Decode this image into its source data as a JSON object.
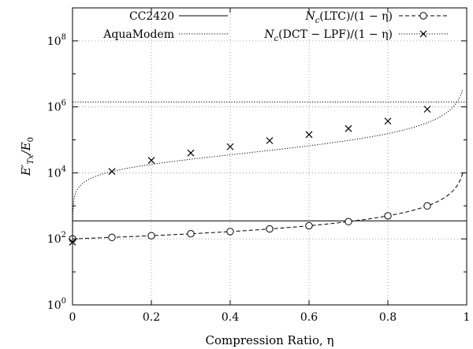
{
  "chart_data": {
    "type": "line",
    "xlabel": "Compression Ratio, η",
    "ylabel": "E′Tx/E0",
    "ylabel_parts": {
      "main": "E′",
      "sub1": "Tx",
      "slash": "/E",
      "sub2": "0"
    },
    "xlim": [
      0,
      1
    ],
    "ylim_log10": [
      0,
      9
    ],
    "y_scale": "log",
    "grid": true,
    "legend_position": "top",
    "x_ticks": [
      "0",
      "0.2",
      "0.4",
      "0.6",
      "0.8",
      "1"
    ],
    "y_ticks": [
      {
        "base": "10",
        "exp": "0"
      },
      {
        "base": "10",
        "exp": "2"
      },
      {
        "base": "10",
        "exp": "4"
      },
      {
        "base": "10",
        "exp": "6"
      },
      {
        "base": "10",
        "exp": "8"
      }
    ],
    "series": [
      {
        "name": "CC2420",
        "style": "solid",
        "marker": "none",
        "constant": 350
      },
      {
        "name": "AquaModem",
        "style": "dotted",
        "marker": "none",
        "constant": 1400000
      },
      {
        "name": "Nc(LTC)/(1 − η)",
        "legend": {
          "pre": "N",
          "sub": "c",
          "post": "(LTC)/(1 − η)"
        },
        "style": "dashed",
        "marker": "circle",
        "base": 100,
        "x": [
          0,
          0.1,
          0.2,
          0.3,
          0.4,
          0.5,
          0.6,
          0.7,
          0.8,
          0.9
        ],
        "values": [
          100,
          111,
          125,
          143,
          167,
          200,
          250,
          333,
          500,
          1000
        ]
      },
      {
        "name": "Nc(DCT − LPF)/(1 − η)",
        "legend": {
          "pre": "N",
          "sub": "c",
          "post": "(DCT − LPF)/(1 − η)"
        },
        "style": "dotted",
        "marker": "cross",
        "x": [
          0,
          0.1,
          0.2,
          0.3,
          0.4,
          0.5,
          0.6,
          0.7,
          0.8,
          0.9
        ],
        "values": [
          80,
          11000,
          24000,
          40000,
          62000,
          95000,
          145000,
          220000,
          370000,
          850000
        ]
      }
    ]
  }
}
